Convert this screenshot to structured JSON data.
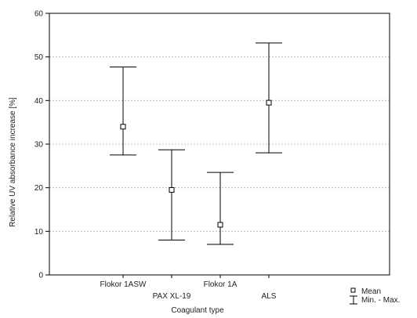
{
  "chart_data": {
    "type": "errorbar",
    "xlabel": "Coagulant type",
    "ylabel": "Relative UV absorbance increase [%]",
    "ylim": [
      0,
      60
    ],
    "yticks": [
      0,
      10,
      20,
      30,
      40,
      50,
      60
    ],
    "grid": "horizontal dashed",
    "categories": [
      "Flokor 1ASW",
      "PAX XL-19",
      "Flokor 1A",
      "ALS"
    ],
    "mean": [
      34,
      19.5,
      11.5,
      39.5
    ],
    "min": [
      27.5,
      8,
      7,
      28
    ],
    "max": [
      47.7,
      28.7,
      23.5,
      53.2
    ],
    "legend": {
      "placement": "bottom-right",
      "mean_label": "Mean",
      "range_label": "Min. - Max."
    },
    "colors": {
      "axis": "#000000",
      "grid": "#b0b0b0",
      "marker": "#000000"
    }
  }
}
